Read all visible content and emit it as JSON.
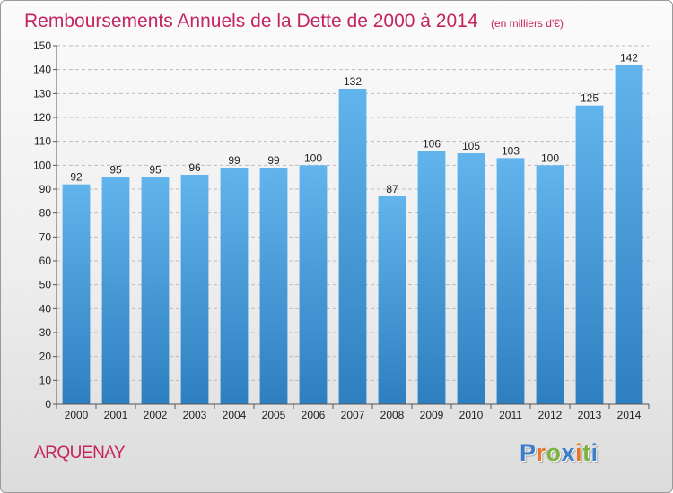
{
  "colors": {
    "title": "#c4245f",
    "bar_light": "#62b4ec",
    "bar_dark": "#2d7fc0",
    "grid": "#bdbdbd",
    "axis": "#555555"
  },
  "chart_data": {
    "type": "bar",
    "title": "Remboursements Annuels de la Dette de 2000 à 2014",
    "unit_label": "(en milliers d'€)",
    "xlabel": "",
    "ylabel": "",
    "ylim": [
      0,
      150
    ],
    "ytick_step": 10,
    "grid": true,
    "categories": [
      "2000",
      "2001",
      "2002",
      "2003",
      "2004",
      "2005",
      "2006",
      "2007",
      "2008",
      "2009",
      "2010",
      "2011",
      "2012",
      "2013",
      "2014"
    ],
    "values": [
      92,
      95,
      95,
      96,
      99,
      99,
      100,
      132,
      87,
      106,
      105,
      103,
      100,
      125,
      142
    ]
  },
  "footer": {
    "commune": "ARQUENAY",
    "logo_letters": [
      {
        "char": "P",
        "color": "#3a7fc8"
      },
      {
        "char": "r",
        "color": "#e8732a"
      },
      {
        "char": "o",
        "color": "#7cb342"
      },
      {
        "char": "x",
        "color": "#3a7fc8"
      },
      {
        "char": "i",
        "color": "#e8732a"
      },
      {
        "char": "t",
        "color": "#7cb342"
      },
      {
        "char": "i",
        "color": "#3a7fc8"
      }
    ]
  }
}
